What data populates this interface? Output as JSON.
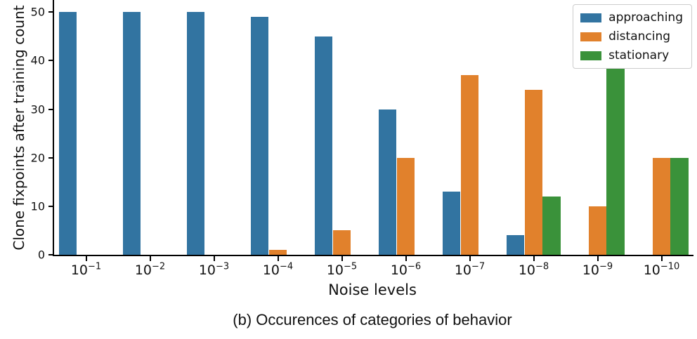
{
  "figure": {
    "caption": "(b) Occurences of categories of behavior"
  },
  "chart_data": {
    "type": "bar",
    "title": "",
    "xlabel": "Noise levels",
    "ylabel": "Clone fixpoints after training count",
    "categories": [
      "10^−1",
      "10^−2",
      "10^−3",
      "10^−4",
      "10^−5",
      "10^−6",
      "10^−7",
      "10^−8",
      "10^−9",
      "10^−10"
    ],
    "series": [
      {
        "name": "approaching",
        "color": "#3274a1",
        "values": [
          50,
          50,
          50,
          49,
          45,
          30,
          13,
          4,
          0,
          0
        ]
      },
      {
        "name": "distancing",
        "color": "#e1812c",
        "values": [
          0,
          0,
          0,
          1,
          5,
          20,
          37,
          34,
          10,
          20
        ]
      },
      {
        "name": "stationary",
        "color": "#3a923a",
        "values": [
          0,
          0,
          0,
          0,
          0,
          0,
          0,
          12,
          40,
          20
        ]
      }
    ],
    "ylim": [
      0,
      52.5
    ],
    "yticks": [
      0,
      10,
      20,
      30,
      40,
      50
    ],
    "grid": false,
    "legend_position": "upper-right"
  }
}
